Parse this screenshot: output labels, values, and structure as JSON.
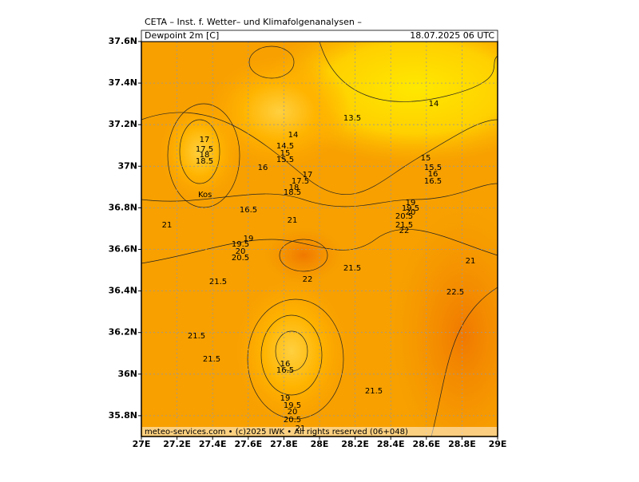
{
  "header": {
    "source": "CETA – Inst. f. Wetter– und Klimafolgenanalysen –",
    "field": "Dewpoint 2m [C]",
    "valid_time": "18.07.2025 06 UTC"
  },
  "axes": {
    "lon_labels": [
      "27E",
      "27.2E",
      "27.4E",
      "27.6E",
      "27.8E",
      "28E",
      "28.2E",
      "28.4E",
      "28.6E",
      "28.8E",
      "29E"
    ],
    "lat_labels": [
      "37.6N",
      "37.4N",
      "37.2N",
      "37N",
      "36.8N",
      "36.6N",
      "36.4N",
      "36.2N",
      "36N",
      "35.8N"
    ]
  },
  "place_label": "Kos",
  "contour_labels": [
    "14",
    "13.5",
    "14",
    "14.5",
    "15",
    "15.5",
    "16",
    "17",
    "17.5",
    "18",
    "18.5",
    "17",
    "17.5",
    "18",
    "18.5",
    "16.5",
    "21",
    "15",
    "15.5",
    "16",
    "16.5",
    "19",
    "19.5",
    "20",
    "20.5",
    "21.5",
    "22",
    "21",
    "19",
    "19.5",
    "20",
    "20.5",
    "21.5",
    "22",
    "21.5",
    "21",
    "22.5",
    "21.5",
    "21.5",
    "16",
    "16.5",
    "21.5",
    "19",
    "19.5",
    "20",
    "20.5",
    "21"
  ],
  "footer": "meteo-services.com • (c)2025 IWK • All rights reserved (06+048)"
}
